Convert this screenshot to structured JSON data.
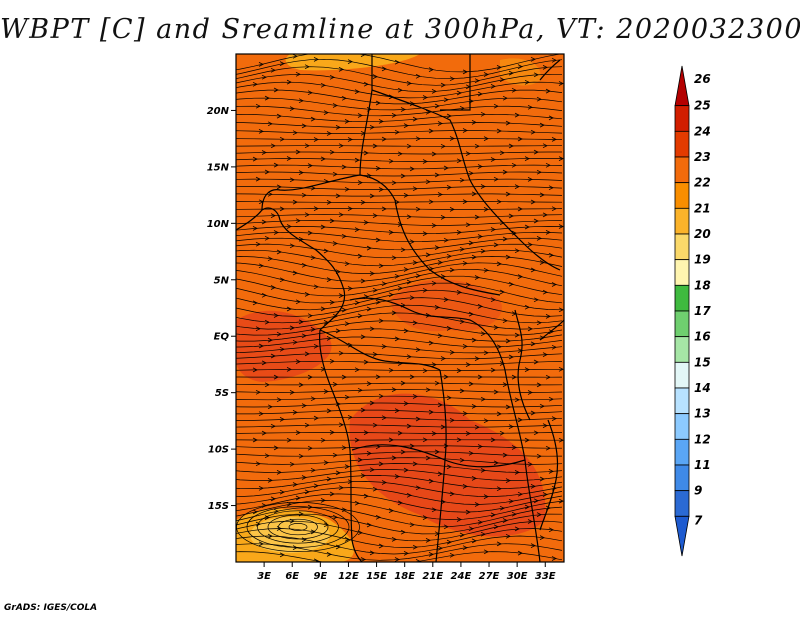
{
  "title": "WBPT [C] and Sreamline at 300hPa, VT: 2020032300",
  "credit": "GrADS: IGES/COLA",
  "map": {
    "lat_labels": [
      "20N",
      "15N",
      "10N",
      "5N",
      "EQ",
      "5S",
      "10S",
      "15S"
    ],
    "lon_labels": [
      "3E",
      "6E",
      "9E",
      "12E",
      "15E",
      "18E",
      "21E",
      "24E",
      "27E",
      "30E",
      "33E"
    ],
    "lat_values": [
      20,
      15,
      10,
      5,
      0,
      -5,
      -10,
      -15
    ],
    "lon_values": [
      3,
      6,
      9,
      12,
      15,
      18,
      21,
      24,
      27,
      30,
      33
    ],
    "lon_range": [
      0,
      35
    ],
    "lat_range": [
      -20,
      25
    ],
    "background_color": "#f26b0c"
  },
  "colorbar": {
    "labels": [
      "26",
      "25",
      "24",
      "23",
      "22",
      "21",
      "20",
      "19",
      "18",
      "17",
      "16",
      "15",
      "14",
      "13",
      "12",
      "11",
      "9",
      "7"
    ],
    "colors": [
      "#b40000",
      "#d21e00",
      "#e33b00",
      "#f26b0c",
      "#f98e00",
      "#fbb32a",
      "#fbd96a",
      "#fff5b0",
      "#3fba3f",
      "#6fcf6f",
      "#a6e6a6",
      "#e3f7f7",
      "#b8e2ff",
      "#8ccaff",
      "#5aa6f5",
      "#3f8ae8",
      "#2b6ad4",
      "#1e5bd0"
    ]
  }
}
